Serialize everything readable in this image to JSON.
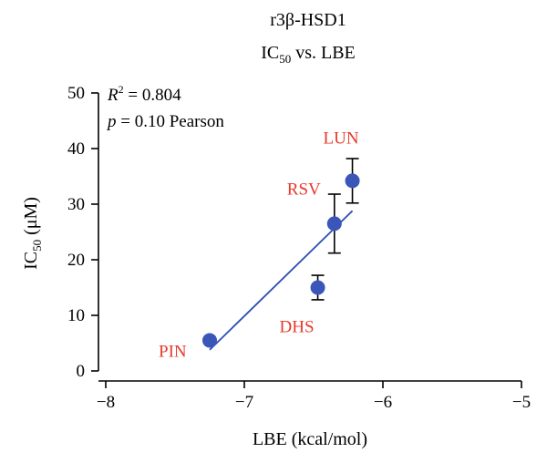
{
  "chart_data": {
    "type": "scatter",
    "title_line1": "r3β-HSD1",
    "title_line2_main": "IC",
    "title_line2_sub": "50",
    "title_line2_rest": " vs. LBE",
    "xlabel": "LBE (kcal/mol)",
    "ylabel_main": "IC",
    "ylabel_sub": "50",
    "ylabel_rest": " (μM)",
    "xlim": [
      -8,
      -5
    ],
    "ylim": [
      0,
      50
    ],
    "xticks": [
      -8,
      -7,
      -6,
      -5
    ],
    "xtick_labels": [
      "−8",
      "−7",
      "−6",
      "−5"
    ],
    "yticks": [
      0,
      10,
      20,
      30,
      40,
      50
    ],
    "ytick_labels": [
      "0",
      "10",
      "20",
      "30",
      "40",
      "50"
    ],
    "stats": {
      "r2_label": "R",
      "r2_sup": "2",
      "r2_value": " = 0.804",
      "p_label": "p",
      "p_value": " = 0.10 Pearson"
    },
    "points": [
      {
        "label": "PIN",
        "x": -7.25,
        "y": 5.5,
        "err": 0
      },
      {
        "label": "DHS",
        "x": -6.47,
        "y": 15.0,
        "err": 2.2
      },
      {
        "label": "RSV",
        "x": -6.35,
        "y": 26.5,
        "err": 5.3
      },
      {
        "label": "LUN",
        "x": -6.22,
        "y": 34.2,
        "err": 4.0
      }
    ],
    "fit_line": {
      "x": [
        -7.25,
        -6.22
      ],
      "y": [
        3.8,
        28.8
      ]
    },
    "colors": {
      "points": "#3a56b8",
      "labels": "#e8392b",
      "fit": "#2e4fb0"
    }
  }
}
